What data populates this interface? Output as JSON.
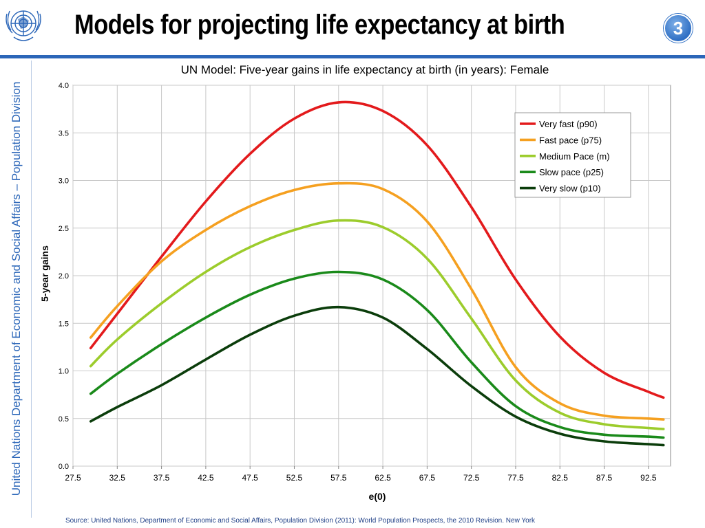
{
  "header": {
    "title": "Models for projecting life expectancy at birth",
    "page_number": "3",
    "logo_icon": "un-emblem-icon"
  },
  "sidebar": {
    "text": "United Nations Department of Economic and Social Affairs – Population Division"
  },
  "footer": {
    "source": "Source: United Nations, Department of Economic and Social Affairs, Population Division (2011): World Population Prospects, the 2010 Revision. New York"
  },
  "colors": {
    "accent": "#2b66b8"
  },
  "chart_data": {
    "type": "line",
    "title": "UN Model: Five-year gains in life expectancy at birth (in years): Female",
    "xlabel": "e(0)",
    "ylabel": "5-year gains",
    "xlim": [
      27.5,
      95
    ],
    "ylim": [
      0,
      4
    ],
    "x_ticks": [
      "27.5",
      "32.5",
      "37.5",
      "42.5",
      "47.5",
      "52.5",
      "57.5",
      "62.5",
      "67.5",
      "72.5",
      "77.5",
      "82.5",
      "87.5",
      "92.5"
    ],
    "y_ticks": [
      "0.0",
      "0.5",
      "1.0",
      "1.5",
      "2.0",
      "2.5",
      "3.0",
      "3.5",
      "4.0"
    ],
    "grid": true,
    "legend_position": "top-right",
    "x": [
      29.5,
      32.5,
      37.5,
      42.5,
      47.5,
      52.5,
      57.5,
      62.5,
      67.5,
      72.5,
      77.5,
      82.5,
      87.5,
      92.5,
      94.2
    ],
    "series": [
      {
        "name": "Very fast (p90)",
        "color": "#e31a1c",
        "values": [
          1.24,
          1.6,
          2.2,
          2.78,
          3.28,
          3.65,
          3.82,
          3.73,
          3.37,
          2.72,
          1.96,
          1.36,
          0.98,
          0.78,
          0.72
        ]
      },
      {
        "name": "Fast pace (p75)",
        "color": "#f5a020",
        "values": [
          1.35,
          1.68,
          2.15,
          2.48,
          2.73,
          2.9,
          2.97,
          2.91,
          2.57,
          1.86,
          1.04,
          0.66,
          0.53,
          0.5,
          0.49
        ]
      },
      {
        "name": "Medium Pace (m)",
        "color": "#9ccc2c",
        "values": [
          1.05,
          1.33,
          1.71,
          2.04,
          2.3,
          2.48,
          2.58,
          2.51,
          2.18,
          1.55,
          0.9,
          0.56,
          0.44,
          0.4,
          0.39
        ]
      },
      {
        "name": "Slow pace (p25)",
        "color": "#1a8a1a",
        "values": [
          0.76,
          0.97,
          1.28,
          1.56,
          1.8,
          1.97,
          2.04,
          1.96,
          1.64,
          1.09,
          0.63,
          0.41,
          0.33,
          0.31,
          0.3
        ]
      },
      {
        "name": "Very slow (p10)",
        "color": "#0b3d0b",
        "values": [
          0.47,
          0.62,
          0.85,
          1.12,
          1.38,
          1.58,
          1.67,
          1.56,
          1.23,
          0.84,
          0.52,
          0.34,
          0.26,
          0.23,
          0.22
        ]
      }
    ]
  }
}
